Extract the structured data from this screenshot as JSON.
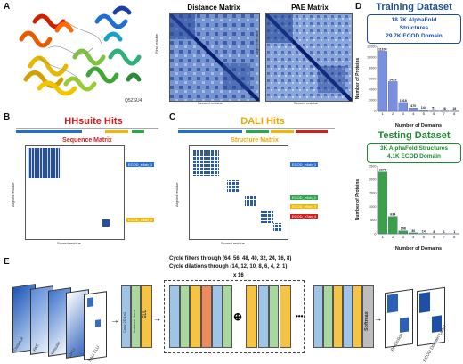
{
  "panels": {
    "a": "A",
    "b": "B",
    "c": "C",
    "d": "D",
    "e": "E"
  },
  "panel_a": {
    "protein_id": "Q5ZSU4",
    "distance_matrix": {
      "title": "Distance Matrix",
      "xlabel": "Second residue",
      "ylabel": "First residue",
      "ticks": [
        "0",
        "100",
        "200",
        "300",
        "400",
        "500",
        "600",
        "700"
      ]
    },
    "pae_matrix": {
      "title": "PAE Matrix",
      "xlabel": "Scored residue",
      "ylabel": "Aligned residue",
      "ticks": [
        "0",
        "100",
        "200",
        "300",
        "400",
        "500",
        "600",
        "700"
      ]
    },
    "colors": {
      "title": "#1f4e9e"
    }
  },
  "panel_b": {
    "title": "HHsuite Hits",
    "matrix_title": "Sequence Matrix",
    "xlabel": "Scored residue",
    "ylabel": "Aligned residue",
    "domains": [
      "ECOD_e4ab_1",
      "ECOD_e4ab_2"
    ],
    "bar_colors": [
      "#1f6fd1",
      "#f2b705",
      "#2aa84a"
    ],
    "colors": {
      "title": "#d81b1b"
    }
  },
  "panel_c": {
    "title": "DALI Hits",
    "matrix_title": "Structure Matrix",
    "xlabel": "Scored residue",
    "ylabel": "Aligned residue",
    "domains": [
      "ECOD_e4ab_1",
      "ECOD_e4cb_2",
      "ECOD_e5ab_3",
      "ECOD_e7ab_4"
    ],
    "bar_colors": [
      "#1f6fd1",
      "#2aa84a",
      "#f2b705",
      "#d81b1b"
    ],
    "colors": {
      "title": "#f0a800"
    }
  },
  "panel_d": {
    "training": {
      "title": "Training Dataset",
      "line1": "18.7K AlphaFold",
      "line2": "Structures",
      "line3": "29.7K ECOD Domain",
      "xlabel": "Number of Domains",
      "ylabel": "Number of Proteins",
      "color": "#1f4e9e"
    },
    "testing": {
      "title": "Testing Dataset",
      "line1": "3K AlphaFold Structures",
      "line2": "4.1K ECOD Domain",
      "xlabel": "Number of Domains",
      "ylabel": "Number of Proteins",
      "color": "#1c8a2e"
    }
  },
  "panel_e": {
    "filters_text": "Cycle filters through (64, 56, 48, 40, 32, 24, 16, 8)",
    "dilations_text": "Cycle dilations through (14, 12, 10, 8, 6, 4, 2, 1)",
    "repeat": "x 16",
    "inputs": [
      "Distance",
      "PAE",
      "HHsuite",
      "DALI",
      "DALI ELU"
    ],
    "prediction": "Prediction",
    "label": "ECOD Domain Label",
    "blocks_left": [
      "Conv 2D 1x1",
      "Instance Norm",
      "ELU"
    ],
    "blocks_middle": [
      "Conv 2D (3x3) dilation",
      "Instance Norm",
      "ELU",
      "Dropout",
      "Conv 2D (3x3) dilation",
      "Instance Norm"
    ],
    "blocks_right": [
      "Conv 2D (3x3) dilation",
      "Instance Norm",
      "ELU"
    ],
    "blocks_out": [
      "Conv 2D 1x1",
      "Instance Norm",
      "ELU",
      "Conv 2D",
      "ELU",
      "Softmax"
    ],
    "softmax": "Softmax",
    "plus": "⊕",
    "dots": "•••"
  },
  "chart_data": [
    {
      "type": "bar",
      "title": "Training Dataset",
      "xlabel": "Number of Domains",
      "ylabel": "Number of Proteins",
      "categories": [
        "1",
        "2",
        "3",
        "4",
        "5",
        "6",
        "7",
        "8"
      ],
      "values": [
        11100,
        5429,
        1518,
        470,
        144,
        51,
        28,
        19
      ],
      "ylim": [
        0,
        12000
      ],
      "yticks": [
        "0",
        "2000",
        "4000",
        "6000",
        "8000",
        "10000",
        "12000"
      ],
      "color": "#7a8fe0"
    },
    {
      "type": "bar",
      "title": "Testing Dataset",
      "xlabel": "Number of Domains",
      "ylabel": "Number of Proteins",
      "categories": [
        "1",
        "2",
        "3",
        "4",
        "5",
        "6",
        "7",
        "8"
      ],
      "values": [
        2278,
        634,
        108,
        36,
        14,
        3,
        1,
        1
      ],
      "ylim": [
        0,
        2500
      ],
      "yticks": [
        "0",
        "500",
        "1000",
        "1500",
        "2000",
        "2500"
      ],
      "color": "#3aa14a"
    }
  ]
}
